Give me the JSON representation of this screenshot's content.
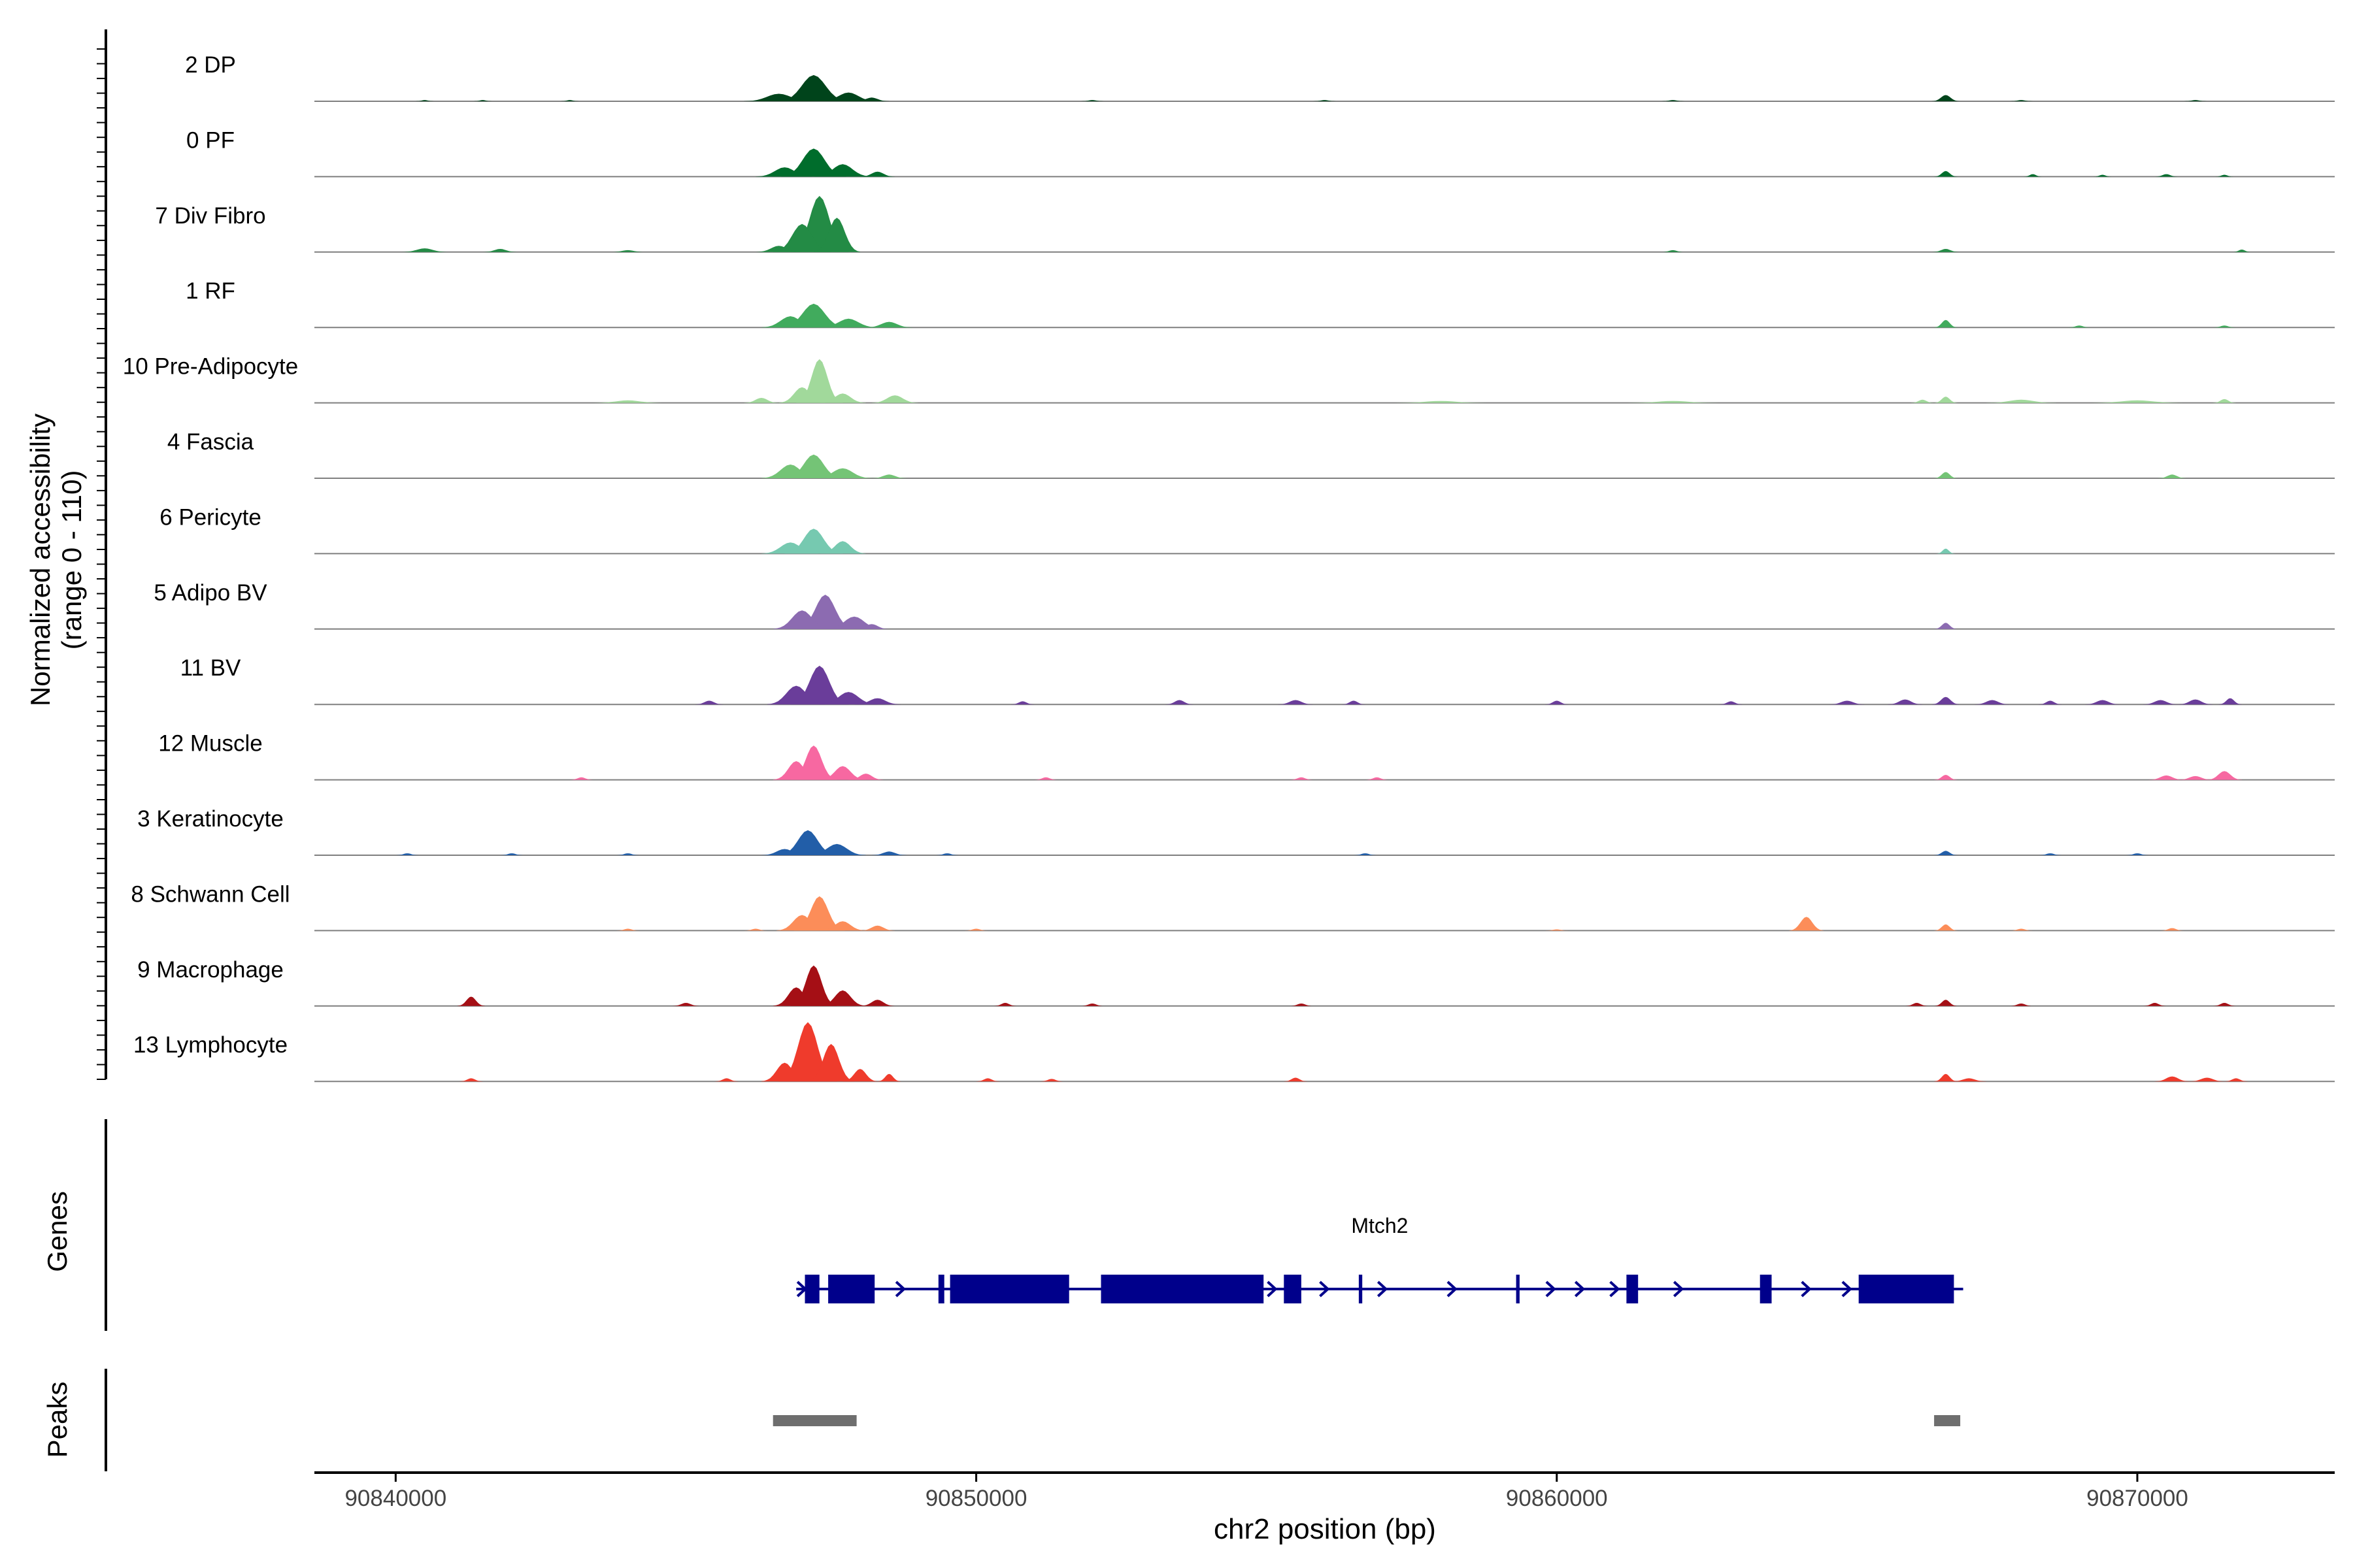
{
  "chart_data": {
    "type": "area",
    "ylabel_line1": "Normalized accessibility",
    "ylabel_line2": "(range 0 - 110)",
    "ylim": [
      0,
      110
    ],
    "xlabel": "chr2 position (bp)",
    "xlim": [
      90838600,
      90873400
    ],
    "x_ticks": [
      90840000,
      90850000,
      90860000,
      90870000
    ],
    "x_tick_labels": [
      "90840000",
      "90850000",
      "90860000",
      "90870000"
    ],
    "genes_label": "Genes",
    "peaks_label": "Peaks",
    "tracks": [
      {
        "name": "2 DP",
        "color": "#00441b",
        "peaks": [
          [
            90847200,
            42,
            300
          ],
          [
            90846600,
            12,
            300
          ],
          [
            90847800,
            14,
            250
          ],
          [
            90848200,
            6,
            150
          ],
          [
            90866700,
            10,
            120
          ],
          [
            90840500,
            2,
            80
          ],
          [
            90841500,
            2,
            80
          ],
          [
            90843000,
            2,
            80
          ],
          [
            90852000,
            2,
            100
          ],
          [
            90856000,
            2,
            100
          ],
          [
            90862000,
            2,
            100
          ],
          [
            90868000,
            2,
            100
          ],
          [
            90871000,
            2,
            100
          ]
        ]
      },
      {
        "name": "0 PF",
        "color": "#006d2c",
        "peaks": [
          [
            90847200,
            45,
            280
          ],
          [
            90846700,
            15,
            250
          ],
          [
            90847700,
            20,
            250
          ],
          [
            90848300,
            8,
            150
          ],
          [
            90866700,
            9,
            100
          ],
          [
            90868200,
            4,
            80
          ],
          [
            90869400,
            3,
            80
          ],
          [
            90870500,
            4,
            100
          ],
          [
            90871500,
            3,
            80
          ]
        ]
      },
      {
        "name": "7 Div Fibro",
        "color": "#238b45",
        "peaks": [
          [
            90847300,
            90,
            250
          ],
          [
            90847000,
            45,
            250
          ],
          [
            90847600,
            55,
            200
          ],
          [
            90846600,
            10,
            200
          ],
          [
            90840500,
            6,
            200
          ],
          [
            90841800,
            5,
            150
          ],
          [
            90844000,
            3,
            150
          ],
          [
            90862000,
            3,
            100
          ],
          [
            90866700,
            5,
            120
          ],
          [
            90871800,
            4,
            80
          ]
        ]
      },
      {
        "name": "1 RF",
        "color": "#41ab5d",
        "peaks": [
          [
            90847200,
            38,
            280
          ],
          [
            90846800,
            18,
            250
          ],
          [
            90847800,
            14,
            250
          ],
          [
            90848500,
            9,
            200
          ],
          [
            90866700,
            12,
            100
          ],
          [
            90869000,
            3,
            100
          ],
          [
            90871500,
            3,
            100
          ]
        ]
      },
      {
        "name": "10 Pre-Adipocyte",
        "color": "#a1d99b",
        "peaks": [
          [
            90847300,
            70,
            200
          ],
          [
            90847000,
            25,
            200
          ],
          [
            90847700,
            15,
            200
          ],
          [
            90848600,
            12,
            200
          ],
          [
            90846300,
            8,
            150
          ],
          [
            90844000,
            4,
            300
          ],
          [
            90858000,
            3,
            400
          ],
          [
            90862000,
            3,
            400
          ],
          [
            90866700,
            10,
            100
          ],
          [
            90866300,
            5,
            100
          ],
          [
            90868000,
            5,
            300
          ],
          [
            90870000,
            4,
            400
          ],
          [
            90871500,
            6,
            100
          ]
        ]
      },
      {
        "name": "4 Fascia",
        "color": "#74c476",
        "peaks": [
          [
            90847200,
            38,
            250
          ],
          [
            90846800,
            22,
            250
          ],
          [
            90847700,
            16,
            250
          ],
          [
            90848500,
            6,
            150
          ],
          [
            90866700,
            10,
            100
          ],
          [
            90870600,
            6,
            120
          ]
        ]
      },
      {
        "name": "6 Pericyte",
        "color": "#76c9b0",
        "peaks": [
          [
            90847200,
            40,
            250
          ],
          [
            90846800,
            18,
            250
          ],
          [
            90847700,
            20,
            200
          ],
          [
            90866700,
            8,
            80
          ]
        ]
      },
      {
        "name": "5 Adipo BV",
        "color": "#8c6bb1",
        "peaks": [
          [
            90847400,
            55,
            250
          ],
          [
            90847000,
            30,
            250
          ],
          [
            90847900,
            20,
            250
          ],
          [
            90848200,
            8,
            150
          ],
          [
            90866700,
            10,
            100
          ]
        ]
      },
      {
        "name": "11 BV",
        "color": "#6a3d9a",
        "peaks": [
          [
            90847300,
            62,
            250
          ],
          [
            90846900,
            30,
            250
          ],
          [
            90847800,
            20,
            250
          ],
          [
            90848300,
            10,
            200
          ],
          [
            90845400,
            6,
            120
          ],
          [
            90850800,
            5,
            100
          ],
          [
            90853500,
            7,
            120
          ],
          [
            90855500,
            7,
            150
          ],
          [
            90856500,
            6,
            100
          ],
          [
            90860000,
            6,
            100
          ],
          [
            90863000,
            5,
            100
          ],
          [
            90865000,
            6,
            150
          ],
          [
            90866000,
            8,
            150
          ],
          [
            90866700,
            12,
            120
          ],
          [
            90867500,
            7,
            150
          ],
          [
            90868500,
            6,
            100
          ],
          [
            90869400,
            7,
            150
          ],
          [
            90870400,
            7,
            150
          ],
          [
            90871000,
            8,
            150
          ],
          [
            90871600,
            10,
            100
          ]
        ]
      },
      {
        "name": "12 Muscle",
        "color": "#f768a1",
        "peaks": [
          [
            90847200,
            55,
            200
          ],
          [
            90846900,
            30,
            200
          ],
          [
            90847700,
            22,
            200
          ],
          [
            90848100,
            10,
            150
          ],
          [
            90843200,
            4,
            100
          ],
          [
            90851200,
            4,
            100
          ],
          [
            90855600,
            4,
            100
          ],
          [
            90856900,
            4,
            100
          ],
          [
            90866700,
            8,
            100
          ],
          [
            90870500,
            7,
            150
          ],
          [
            90871000,
            6,
            150
          ],
          [
            90871500,
            14,
            150
          ]
        ]
      },
      {
        "name": "3 Keratinocyte",
        "color": "#225ea8",
        "peaks": [
          [
            90847100,
            40,
            250
          ],
          [
            90847600,
            18,
            250
          ],
          [
            90846700,
            10,
            200
          ],
          [
            90848500,
            6,
            150
          ],
          [
            90840200,
            3,
            100
          ],
          [
            90842000,
            3,
            100
          ],
          [
            90844000,
            3,
            100
          ],
          [
            90849500,
            3,
            100
          ],
          [
            90856700,
            3,
            100
          ],
          [
            90866700,
            7,
            100
          ],
          [
            90868500,
            3,
            100
          ],
          [
            90870000,
            3,
            100
          ]
        ]
      },
      {
        "name": "8 Schwann Cell",
        "color": "#fc8d59",
        "peaks": [
          [
            90847300,
            55,
            220
          ],
          [
            90847000,
            25,
            220
          ],
          [
            90847700,
            15,
            200
          ],
          [
            90848300,
            8,
            150
          ],
          [
            90844000,
            3,
            100
          ],
          [
            90846200,
            3,
            100
          ],
          [
            90850000,
            3,
            100
          ],
          [
            90860000,
            2,
            100
          ],
          [
            90864300,
            22,
            150
          ],
          [
            90866700,
            10,
            100
          ],
          [
            90868000,
            3,
            100
          ],
          [
            90870600,
            4,
            100
          ]
        ]
      },
      {
        "name": "9 Macrophage",
        "color": "#a50f15",
        "peaks": [
          [
            90847200,
            65,
            200
          ],
          [
            90846900,
            30,
            200
          ],
          [
            90847700,
            25,
            200
          ],
          [
            90848300,
            10,
            150
          ],
          [
            90841300,
            15,
            120
          ],
          [
            90845000,
            5,
            120
          ],
          [
            90850500,
            5,
            100
          ],
          [
            90852000,
            4,
            100
          ],
          [
            90855600,
            4,
            100
          ],
          [
            90866700,
            10,
            100
          ],
          [
            90866200,
            5,
            100
          ],
          [
            90868000,
            4,
            100
          ],
          [
            90870300,
            5,
            100
          ],
          [
            90871500,
            5,
            100
          ]
        ]
      },
      {
        "name": "13 Lymphocyte",
        "color": "#ef3b2c",
        "peaks": [
          [
            90847100,
            95,
            250
          ],
          [
            90847500,
            60,
            200
          ],
          [
            90846700,
            30,
            200
          ],
          [
            90848000,
            20,
            150
          ],
          [
            90848500,
            12,
            100
          ],
          [
            90841300,
            5,
            100
          ],
          [
            90845700,
            5,
            100
          ],
          [
            90850200,
            5,
            100
          ],
          [
            90851300,
            4,
            100
          ],
          [
            90855500,
            6,
            100
          ],
          [
            90866700,
            12,
            100
          ],
          [
            90867100,
            5,
            150
          ],
          [
            90870600,
            8,
            150
          ],
          [
            90871200,
            6,
            150
          ],
          [
            90871700,
            5,
            100
          ]
        ]
      }
    ],
    "gene": {
      "name": "Mtch2",
      "color": "#00008b",
      "start": 90846900,
      "end": 90867000,
      "exons": [
        [
          90847050,
          90847300
        ],
        [
          90847450,
          90848250
        ],
        [
          90849350,
          90849450
        ],
        [
          90849550,
          90851600
        ],
        [
          90852150,
          90854950
        ],
        [
          90855300,
          90855600
        ],
        [
          90856590,
          90856650
        ],
        [
          90859300,
          90859360
        ],
        [
          90861200,
          90861400
        ],
        [
          90863500,
          90863700
        ],
        [
          90865200,
          90866840
        ]
      ],
      "arrows": [
        90847000,
        90848700,
        90850000,
        90855100,
        90856000,
        90857000,
        90858200,
        90859900,
        90860400,
        90861000,
        90862100,
        90864300,
        90865000
      ]
    },
    "peak_regions": [
      [
        90846500,
        90847940
      ],
      [
        90866500,
        90866950
      ]
    ],
    "peak_color": "#6e6e6e"
  }
}
